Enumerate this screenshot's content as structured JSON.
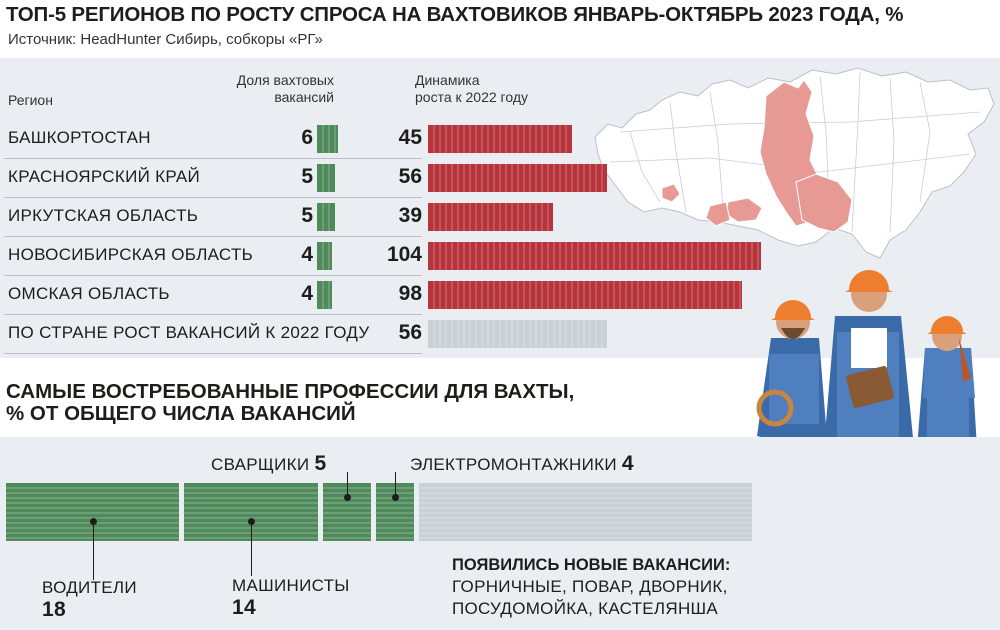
{
  "title": "ТОП-5 РЕГИОНОВ ПО РОСТУ СПРОСА НА ВАХТОВИКОВ ЯНВАРЬ-ОКТЯБРЬ 2023 ГОДА, %",
  "source": "Источник: HeadHunter Сибирь, собкоры «РГ»",
  "headers": {
    "region": "Регион",
    "share_line1": "Доля вахтовых",
    "share_line2": "вакансий",
    "growth_line1": "Динамика",
    "growth_line2": "роста к 2022 году"
  },
  "colors": {
    "green": "#4f8a5b",
    "red": "#b8343d",
    "gray_bar": "#c9d0d6",
    "map_highlight": "#e79a94",
    "panel": "#eaeef2"
  },
  "chart_data": [
    {
      "type": "bar",
      "categories": [
        "БАШКОРТОСТАН",
        "КРАСНОЯРСКИЙ КРАЙ",
        "ИРКУТСКАЯ ОБЛАСТЬ",
        "НОВОСИБИРСКАЯ ОБЛАСТЬ",
        "ОМСКАЯ ОБЛАСТЬ",
        "ПО СТРАНЕ РОСТ ВАКАНСИЙ К 2022 ГОДУ"
      ],
      "series": [
        {
          "name": "Доля вахтовых вакансий",
          "values": [
            6,
            5,
            5,
            4,
            4,
            null
          ]
        },
        {
          "name": "Динамика роста к 2022 году",
          "values": [
            45,
            56,
            39,
            104,
            98,
            56
          ]
        }
      ]
    },
    {
      "type": "bar",
      "title": "САМЫЕ ВОСТРЕБОВАННЫЕ ПРОФЕССИИ ДЛЯ ВАХТЫ, % ОТ ОБЩЕГО ЧИСЛА ВАКАНСИЙ",
      "categories": [
        "ВОДИТЕЛИ",
        "МАШИНИСТЫ",
        "СВАРЩИКИ",
        "ЭЛЕКТРОМОНТАЖНИКИ"
      ],
      "values": [
        18,
        14,
        5,
        4
      ]
    }
  ],
  "section2": {
    "title_line1": "САМЫЕ ВОСТРЕБОВАННЫЕ ПРОФЕССИИ ДЛЯ ВАХТЫ,",
    "title_line2": "% ОТ ОБЩЕГО ЧИСЛА ВАКАНСИЙ"
  },
  "new_vacancies": {
    "title": "ПОЯВИЛИСЬ НОВЫЕ ВАКАНСИИ:",
    "line1": "ГОРНИЧНЫЕ, ПОВАР, ДВОРНИК,",
    "line2": "ПОСУДОМОЙКА, КАСТЕЛЯНША"
  }
}
